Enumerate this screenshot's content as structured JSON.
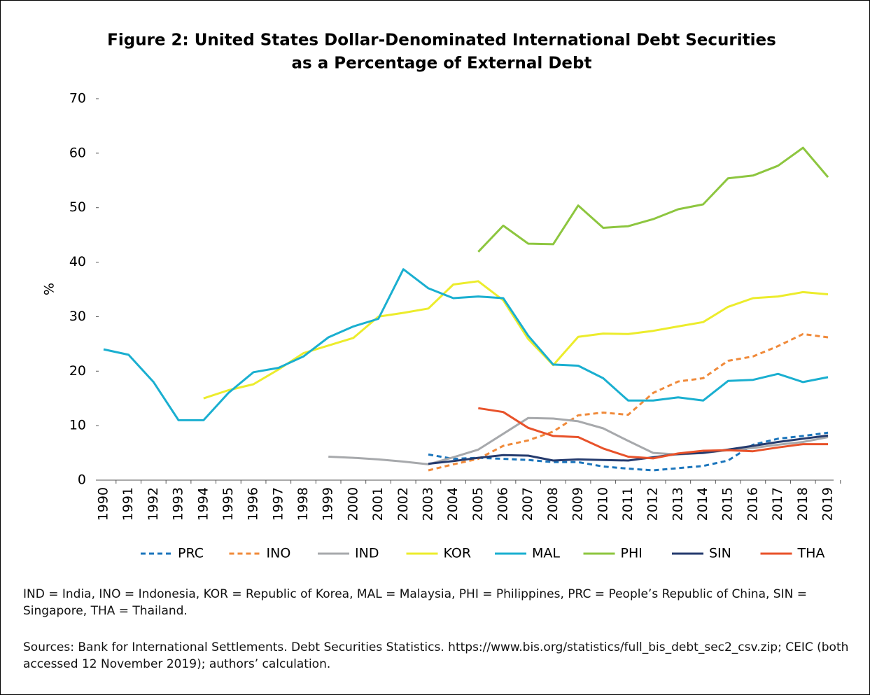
{
  "chart_data": {
    "type": "line",
    "title": [
      "Figure 2: United States Dollar-Denominated International Debt Securities",
      "as a Percentage of External Debt"
    ],
    "y_label": "%",
    "categories": [
      "1990",
      "1991",
      "1992",
      "1993",
      "1994",
      "1995",
      "1996",
      "1997",
      "1998",
      "1999",
      "2000",
      "2001",
      "2002",
      "2003",
      "2004",
      "2005",
      "2006",
      "2007",
      "2008",
      "2009",
      "2010",
      "2011",
      "2012",
      "2013",
      "2014",
      "2015",
      "2016",
      "2017",
      "2018",
      "2019"
    ],
    "ylim": [
      0,
      70
    ],
    "yticks": [
      0,
      10,
      20,
      30,
      40,
      50,
      60,
      70
    ],
    "grid": false,
    "legend": "bottom",
    "series": [
      {
        "name": "PRC",
        "color": "#1b75bc",
        "dash": true,
        "values": [
          null,
          null,
          null,
          null,
          null,
          null,
          null,
          null,
          null,
          null,
          null,
          null,
          null,
          4.7,
          3.9,
          4.1,
          3.9,
          3.7,
          3.3,
          3.3,
          2.5,
          2.1,
          1.8,
          2.2,
          2.6,
          3.6,
          6.5,
          7.6,
          8.1,
          8.7
        ]
      },
      {
        "name": "INO",
        "color": "#f08a3a",
        "dash": true,
        "values": [
          null,
          null,
          null,
          null,
          null,
          null,
          null,
          null,
          null,
          null,
          null,
          null,
          null,
          1.8,
          2.9,
          3.9,
          6.3,
          7.3,
          8.9,
          11.9,
          12.4,
          12.0,
          16.0,
          18.1,
          18.7,
          21.9,
          22.7,
          24.6,
          26.8,
          26.2
        ]
      },
      {
        "name": "IND",
        "color": "#a7a9ac",
        "dash": false,
        "values": [
          null,
          null,
          null,
          null,
          null,
          null,
          null,
          null,
          null,
          4.3,
          4.1,
          3.8,
          3.4,
          2.9,
          4.2,
          5.6,
          8.5,
          11.4,
          11.3,
          10.8,
          9.5,
          7.2,
          5.0,
          4.7,
          5.0,
          5.5,
          5.9,
          6.5,
          7.0,
          7.9
        ]
      },
      {
        "name": "KOR",
        "color": "#ecec2c",
        "dash": false,
        "values": [
          null,
          null,
          null,
          null,
          15.0,
          16.5,
          17.6,
          20.3,
          23.3,
          24.7,
          26.1,
          30.0,
          30.7,
          31.5,
          35.9,
          36.5,
          33.0,
          25.9,
          21.1,
          26.3,
          26.9,
          26.8,
          27.4,
          28.2,
          29.0,
          31.8,
          33.4,
          33.7,
          34.5,
          34.1
        ]
      },
      {
        "name": "MAL",
        "color": "#1aafd0",
        "dash": false,
        "values": [
          24.0,
          23.0,
          18.0,
          11.0,
          11.0,
          16.0,
          19.8,
          20.6,
          22.7,
          26.2,
          28.2,
          29.6,
          38.7,
          35.2,
          33.4,
          33.7,
          33.4,
          26.5,
          21.2,
          21.0,
          18.7,
          14.6,
          14.6,
          15.2,
          14.6,
          18.2,
          18.4,
          19.5,
          18.0,
          18.9
        ]
      },
      {
        "name": "PHI",
        "color": "#8dc63f",
        "dash": false,
        "values": [
          null,
          null,
          null,
          null,
          null,
          null,
          null,
          null,
          null,
          null,
          null,
          null,
          null,
          null,
          null,
          41.9,
          46.7,
          43.4,
          43.3,
          50.4,
          46.3,
          46.6,
          47.9,
          49.7,
          50.6,
          55.4,
          55.9,
          57.7,
          61.0,
          55.6
        ]
      },
      {
        "name": "SIN",
        "color": "#253b6e",
        "dash": false,
        "values": [
          null,
          null,
          null,
          null,
          null,
          null,
          null,
          null,
          null,
          null,
          null,
          null,
          null,
          3.0,
          3.5,
          4.1,
          4.6,
          4.5,
          3.6,
          3.8,
          3.7,
          3.6,
          4.2,
          4.8,
          5.0,
          5.6,
          6.3,
          7.0,
          7.6,
          8.2
        ]
      },
      {
        "name": "THA",
        "color": "#e8522a",
        "dash": false,
        "values": [
          null,
          null,
          null,
          null,
          null,
          null,
          null,
          null,
          null,
          null,
          null,
          null,
          null,
          null,
          null,
          13.2,
          12.5,
          9.6,
          8.1,
          7.9,
          5.8,
          4.3,
          4.0,
          4.9,
          5.4,
          5.5,
          5.3,
          6.0,
          6.6,
          6.6
        ]
      }
    ],
    "notes": "IND = India, INO = Indonesia, KOR = Republic of Korea, MAL = Malaysia, PHI = Philippines, PRC = People’s Republic of China, SIN = Singapore, THA = Thailand.",
    "sources": "Sources: Bank for International Settlements. Debt Securities Statistics. https://www.bis.org/statistics/full_bis_debt_sec2_csv.zip; CEIC (both accessed 12 November 2019); authors’ calculation."
  }
}
